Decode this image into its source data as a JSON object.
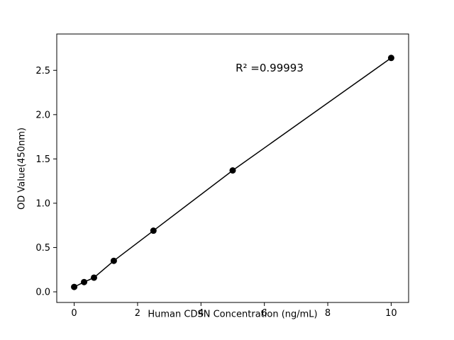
{
  "chart_data": {
    "type": "scatter",
    "title": "",
    "xlabel": "Human CDSN Concentration (ng/mL)",
    "ylabel": "OD Value(450nm)",
    "annotation": "R² =0.99993",
    "x": [
      0,
      0.3125,
      0.625,
      1.25,
      2.5,
      5,
      10
    ],
    "y": [
      0.055,
      0.11,
      0.16,
      0.35,
      0.69,
      1.37,
      2.64
    ],
    "line": true,
    "grid": false,
    "legend": "none",
    "marker_color": "#000000",
    "line_color": "#000000",
    "xlim": [
      -0.55,
      10.55
    ],
    "ylim": [
      -0.12,
      2.91
    ],
    "xticks": [
      {
        "value": 0,
        "label": "0"
      },
      {
        "value": 2,
        "label": "2"
      },
      {
        "value": 4,
        "label": "4"
      },
      {
        "value": 6,
        "label": "6"
      },
      {
        "value": 8,
        "label": "8"
      },
      {
        "value": 10,
        "label": "10"
      }
    ],
    "yticks": [
      {
        "value": 0.0,
        "label": "0.0"
      },
      {
        "value": 0.5,
        "label": "0.5"
      },
      {
        "value": 1.0,
        "label": "1.0"
      },
      {
        "value": 1.5,
        "label": "1.5"
      },
      {
        "value": 2.0,
        "label": "2.0"
      },
      {
        "value": 2.5,
        "label": "2.5"
      }
    ]
  }
}
